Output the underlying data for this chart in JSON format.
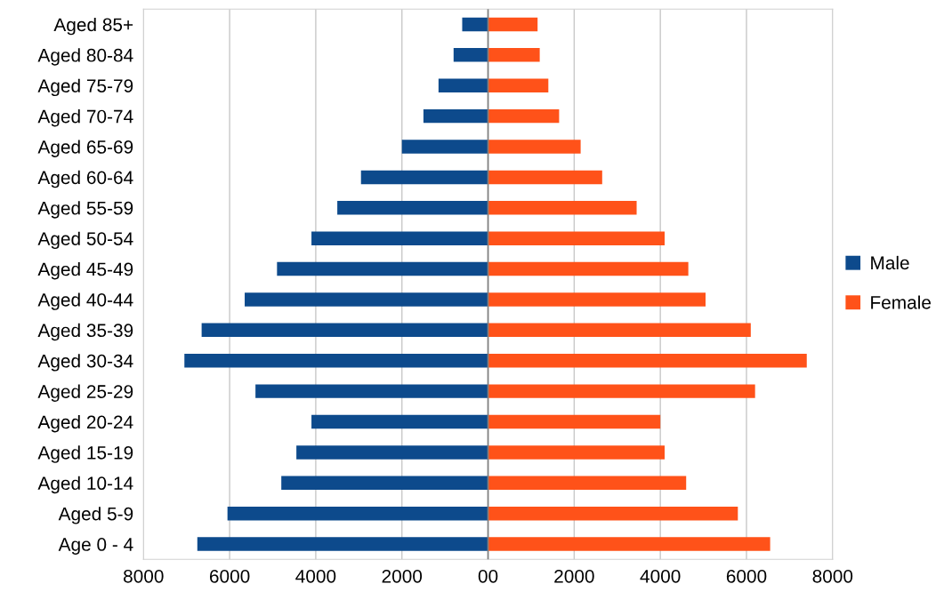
{
  "chart_data": {
    "type": "bar",
    "orientation": "horizontal",
    "stacked": true,
    "categories": [
      "Aged 85+",
      "Aged 80-84",
      "Aged 75-79",
      "Aged 70-74",
      "Aged 65-69",
      "Aged 60-64",
      "Aged 55-59",
      "Aged 50-54",
      "Aged 45-49",
      "Aged 40-44",
      "Aged 35-39",
      "Aged 30-34",
      "Aged 25-29",
      "Aged 20-24",
      "Aged 15-19",
      "Aged 10-14",
      "Aged 5-9",
      "Age 0 - 4"
    ],
    "series": [
      {
        "name": "Male",
        "color": "#0d4a8c",
        "values": [
          -600,
          -800,
          -1150,
          -1500,
          -2000,
          -2950,
          -3500,
          -4100,
          -4900,
          -5650,
          -6650,
          -7050,
          -5400,
          -4100,
          -4450,
          -4800,
          -6050,
          -6750
        ]
      },
      {
        "name": "Female",
        "color": "#ff5219",
        "values": [
          1150,
          1200,
          1400,
          1650,
          2150,
          2650,
          3450,
          4100,
          4650,
          5050,
          6100,
          7400,
          6200,
          4000,
          4100,
          4600,
          5800,
          6550
        ]
      }
    ],
    "xlim": [
      -8000,
      8000
    ],
    "xticks": [
      {
        "value": -8000,
        "label": "8000"
      },
      {
        "value": -6000,
        "label": "6000"
      },
      {
        "value": -4000,
        "label": "4000"
      },
      {
        "value": -2000,
        "label": "2000"
      },
      {
        "value": 0,
        "label": "00"
      },
      2000,
      4000,
      6000,
      8000
    ],
    "grid": "x",
    "legend": "right"
  }
}
